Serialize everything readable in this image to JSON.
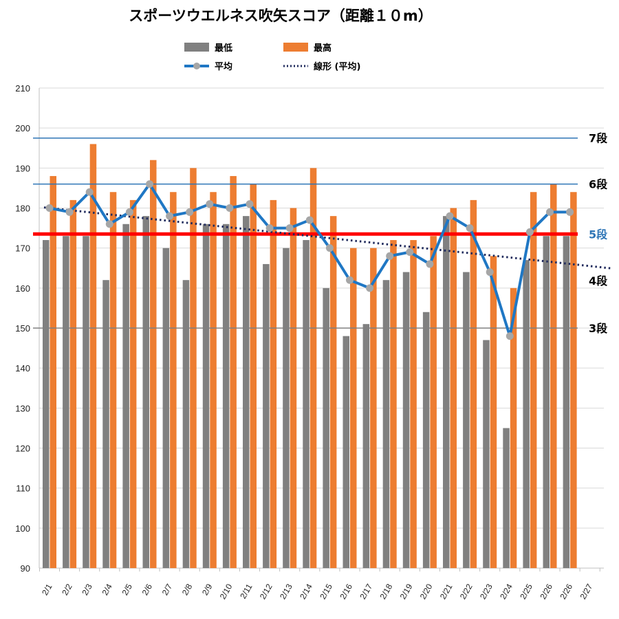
{
  "chart_data": {
    "type": "bar",
    "title": "スポーツウエルネス吹矢スコア（距離１０m）",
    "categories": [
      "2/1",
      "2/2",
      "2/3",
      "2/4",
      "2/5",
      "2/6",
      "2/7",
      "2/8",
      "2/9",
      "2/10",
      "2/11",
      "2/12",
      "2/13",
      "2/14",
      "2/15",
      "2/16",
      "2/17",
      "2/18",
      "2/19",
      "2/20",
      "2/21",
      "2/22",
      "2/23",
      "2/24",
      "2/25",
      "2/26",
      "2/26",
      "2/27"
    ],
    "series": [
      {
        "name": "最低",
        "kind": "bar",
        "color": "#808080",
        "values": [
          172,
          173,
          173,
          162,
          176,
          178,
          170,
          162,
          176,
          176,
          178,
          166,
          170,
          172,
          160,
          148,
          151,
          162,
          164,
          154,
          178,
          164,
          147,
          125,
          167,
          173,
          173,
          null
        ]
      },
      {
        "name": "最高",
        "kind": "bar",
        "color": "#ED7D31",
        "values": [
          188,
          182,
          196,
          184,
          182,
          192,
          184,
          190,
          184,
          188,
          186,
          182,
          180,
          190,
          178,
          170,
          170,
          172,
          172,
          173,
          180,
          182,
          168,
          160,
          184,
          186,
          184,
          null
        ]
      },
      {
        "name": "平均",
        "kind": "line",
        "color": "#1F77C4",
        "marker_color": "#A6A6A6",
        "values": [
          180,
          179,
          184,
          176,
          179,
          186,
          178,
          179,
          181,
          180,
          181,
          175,
          175,
          177,
          170,
          162,
          160,
          168,
          169,
          166,
          178,
          175,
          164,
          148,
          174,
          179,
          179,
          null
        ]
      },
      {
        "name": "線形 (平均)",
        "kind": "trendline",
        "style": "dotted",
        "color": "#1F2A5C",
        "start": 180.5,
        "end": 164.9
      }
    ],
    "ylim": [
      90,
      210
    ],
    "yticks": [
      90,
      100,
      110,
      120,
      130,
      140,
      150,
      160,
      170,
      180,
      190,
      200,
      210
    ],
    "grid": true,
    "legend_position": "top",
    "reference_lines": [
      {
        "label": "7段",
        "value": 197.5,
        "color": "#2E75B6",
        "label_color": "#000000"
      },
      {
        "label": "6段",
        "value": 186,
        "color": "#2E75B6",
        "label_color": "#000000"
      },
      {
        "label": "5段",
        "value": 173.5,
        "color": "#FF0000",
        "label_color": "#2E75B6"
      },
      {
        "label": "4段",
        "value": null,
        "color": null,
        "label_color": "#000000"
      },
      {
        "label": "3段",
        "value": 150,
        "color": "#808080",
        "label_color": "#000000"
      }
    ]
  }
}
